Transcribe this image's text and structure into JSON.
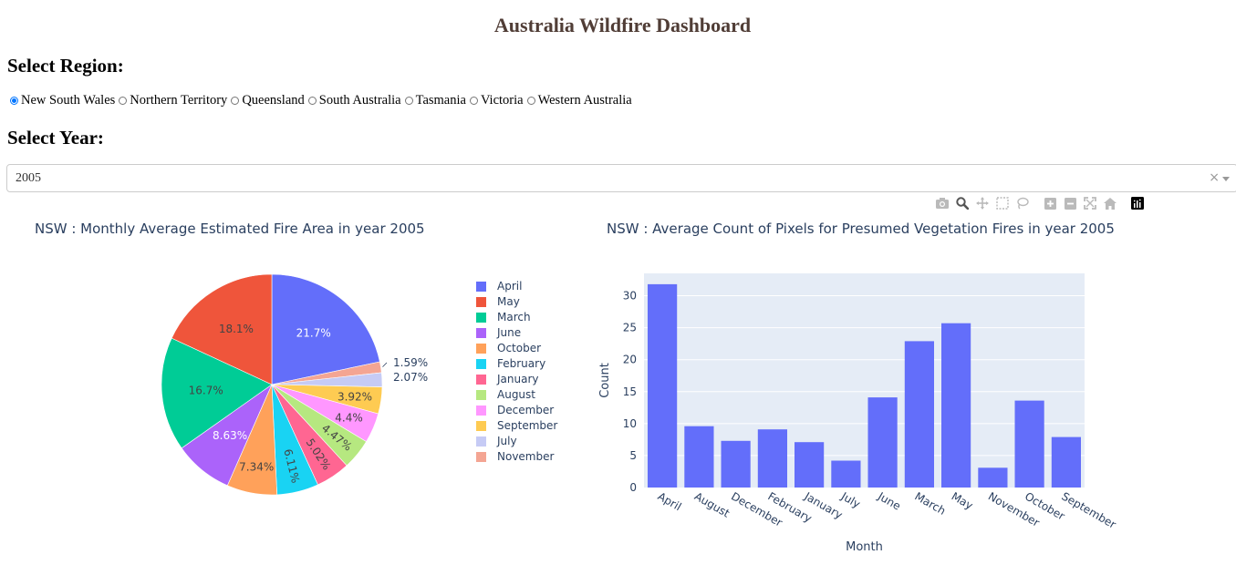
{
  "page": {
    "title": "Australia Wildfire Dashboard",
    "region_heading": "Select Region:",
    "year_heading": "Select Year:"
  },
  "regions": {
    "selected": "New South Wales",
    "options": [
      "New South Wales",
      "Northern Territory",
      "Queensland",
      "South Australia",
      "Tasmania",
      "Victoria",
      "Western Australia"
    ]
  },
  "year_dropdown": {
    "value": "2005",
    "clear": "×"
  },
  "modebar": {
    "icons": [
      "camera-icon",
      "zoom-icon",
      "pan-icon",
      "box-select-icon",
      "lasso-select-icon",
      "zoom-in-icon",
      "zoom-out-icon",
      "autoscale-icon",
      "reset-axes-icon",
      "plotly-logo-icon"
    ],
    "colors": {
      "icon": "#bababa",
      "logo": "#000000"
    }
  },
  "chart_data": [
    {
      "type": "pie",
      "title": "NSW : Monthly Average Estimated Fire Area in year 2005",
      "labels": [
        "April",
        "May",
        "March",
        "June",
        "October",
        "February",
        "January",
        "August",
        "December",
        "September",
        "July",
        "November"
      ],
      "values": [
        21.7,
        18.1,
        16.7,
        8.63,
        7.34,
        6.11,
        5.02,
        4.47,
        4.4,
        3.92,
        2.07,
        1.59
      ],
      "text_labels": [
        "21.7%",
        "18.1%",
        "16.7%",
        "8.63%",
        "7.34%",
        "6.11%",
        "5.02%",
        "4.47%",
        "4.4%",
        "3.92%",
        "2.07%",
        "1.59%"
      ],
      "clockwise_order": [
        "April",
        "November",
        "July",
        "September",
        "December",
        "August",
        "January",
        "February",
        "October",
        "June",
        "March",
        "May"
      ],
      "colors": {
        "April": "#636efa",
        "May": "#EF553B",
        "March": "#00cc96",
        "June": "#ab63fa",
        "October": "#FFA15A",
        "February": "#19d3f3",
        "January": "#FF6692",
        "August": "#B6E880",
        "December": "#FF97FF",
        "September": "#FECB52",
        "July": "#c6cbf5",
        "November": "#f4a593"
      },
      "legend": {
        "position": "right"
      }
    },
    {
      "type": "bar",
      "title": "NSW : Average Count of Pixels for Presumed Vegetation Fires in year 2005",
      "categories": [
        "April",
        "August",
        "December",
        "February",
        "January",
        "July",
        "June",
        "March",
        "May",
        "November",
        "October",
        "September"
      ],
      "values": [
        31.8,
        9.6,
        7.3,
        9.1,
        7.1,
        4.2,
        14.1,
        22.9,
        25.7,
        3.1,
        13.6,
        7.9
      ],
      "xlabel": "Month",
      "ylabel": "Count",
      "yticks": [
        0,
        5,
        10,
        15,
        20,
        25,
        30
      ],
      "ylim": [
        0,
        33.5
      ],
      "bar_color": "#636efa",
      "plot_bg": "#e5ecf6",
      "grid": true
    }
  ]
}
